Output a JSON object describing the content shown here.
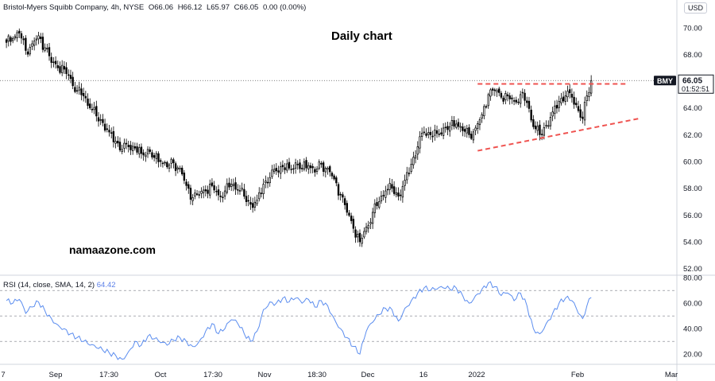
{
  "header": {
    "name": "Bristol-Myers Squibb Company, 4h, NYSE",
    "open": "O66.06",
    "high": "H66.12",
    "low": "L65.97",
    "close": "C66.05",
    "change": "0.00 (0.00%)"
  },
  "currency": "USD",
  "annotation_title": "Daily chart",
  "watermark": "namaazone.com",
  "price_tag": {
    "symbol": "BMY",
    "price": "66.05",
    "countdown": "01:52:51"
  },
  "rsi_header": {
    "label": "RSI (14, close, SMA, 14, 2)",
    "value": "64.42"
  },
  "colors": {
    "up_candle": "#000000",
    "down_candle": "#000000",
    "trendline": "#ef5350",
    "rsi_line": "#5b8def",
    "price_line": "#555555"
  },
  "chart_data": [
    {
      "type": "candlestick",
      "ylim": [
        51.5,
        71.0
      ],
      "y_ticks": [
        "52.00",
        "54.00",
        "56.00",
        "58.00",
        "60.00",
        "62.00",
        "64.00",
        "66.00",
        "68.00",
        "70.00"
      ],
      "x_ticks": [
        "7",
        "Sep",
        "17:30",
        "Oct",
        "17:30",
        "Nov",
        "18:30",
        "Dec",
        "16",
        "2022",
        "Feb",
        "Mar"
      ],
      "close_path": [
        [
          0,
          68.9
        ],
        [
          3,
          69.2
        ],
        [
          6,
          69.6
        ],
        [
          9,
          68.3
        ],
        [
          12,
          68.8
        ],
        [
          15,
          69.4
        ],
        [
          18,
          68.5
        ],
        [
          21,
          67.4
        ],
        [
          24,
          67.0
        ],
        [
          27,
          66.9
        ],
        [
          30,
          66.2
        ],
        [
          33,
          65.3
        ],
        [
          36,
          64.9
        ],
        [
          39,
          64.0
        ],
        [
          42,
          63.4
        ],
        [
          45,
          62.9
        ],
        [
          48,
          62.2
        ],
        [
          51,
          61.5
        ],
        [
          54,
          60.9
        ],
        [
          57,
          61.1
        ],
        [
          60,
          61.0
        ],
        [
          63,
          60.6
        ],
        [
          66,
          60.9
        ],
        [
          69,
          60.3
        ],
        [
          72,
          60.0
        ],
        [
          75,
          59.6
        ],
        [
          78,
          59.9
        ],
        [
          81,
          59.5
        ],
        [
          84,
          58.2
        ],
        [
          87,
          57.3
        ],
        [
          90,
          57.5
        ],
        [
          93,
          57.8
        ],
        [
          96,
          58.2
        ],
        [
          99,
          57.5
        ],
        [
          102,
          57.8
        ],
        [
          105,
          58.3
        ],
        [
          108,
          57.9
        ],
        [
          111,
          57.4
        ],
        [
          114,
          56.8
        ],
        [
          117,
          57.1
        ],
        [
          120,
          58.3
        ],
        [
          123,
          58.8
        ],
        [
          126,
          59.3
        ],
        [
          129,
          59.6
        ],
        [
          132,
          59.5
        ],
        [
          135,
          59.9
        ],
        [
          138,
          59.5
        ],
        [
          141,
          59.7
        ],
        [
          144,
          59.2
        ],
        [
          147,
          59.8
        ],
        [
          150,
          59.5
        ],
        [
          153,
          58.7
        ],
        [
          156,
          57.5
        ],
        [
          159,
          56.2
        ],
        [
          162,
          55.0
        ],
        [
          165,
          54.0
        ],
        [
          168,
          55.1
        ],
        [
          171,
          56.2
        ],
        [
          174,
          57.0
        ],
        [
          177,
          57.8
        ],
        [
          180,
          58.0
        ],
        [
          183,
          57.4
        ],
        [
          186,
          58.6
        ],
        [
          189,
          59.8
        ],
        [
          192,
          61.1
        ],
        [
          195,
          62.2
        ],
        [
          198,
          62.0
        ],
        [
          201,
          62.1
        ],
        [
          204,
          62.5
        ],
        [
          207,
          62.6
        ],
        [
          210,
          62.8
        ],
        [
          213,
          62.3
        ],
        [
          216,
          62.0
        ],
        [
          219,
          62.5
        ],
        [
          222,
          63.5
        ],
        [
          225,
          65.0
        ],
        [
          228,
          65.3
        ],
        [
          231,
          64.8
        ],
        [
          234,
          64.9
        ],
        [
          237,
          64.5
        ],
        [
          240,
          65.0
        ],
        [
          243,
          64.4
        ],
        [
          246,
          62.6
        ],
        [
          249,
          62.0
        ],
        [
          252,
          62.7
        ],
        [
          255,
          63.7
        ],
        [
          258,
          64.5
        ],
        [
          261,
          64.9
        ],
        [
          264,
          64.8
        ],
        [
          267,
          63.8
        ],
        [
          269,
          63.2
        ],
        [
          271,
          64.9
        ],
        [
          273,
          66.05
        ]
      ],
      "last_price": 66.05,
      "trendlines": [
        {
          "style": "dashed",
          "from": [
            220,
            65.8
          ],
          "to": [
            290,
            65.8
          ]
        },
        {
          "style": "dashed",
          "from": [
            220,
            60.8
          ],
          "to": [
            295,
            63.2
          ]
        }
      ]
    },
    {
      "type": "line",
      "name": "RSI (14, close, SMA, 14, 2)",
      "ylim": [
        12,
        82
      ],
      "y_ticks": [
        "20.00",
        "40.00",
        "60.00",
        "80.00"
      ],
      "levels": [
        30,
        50,
        70
      ],
      "values": [
        [
          0,
          62
        ],
        [
          3,
          60
        ],
        [
          6,
          63
        ],
        [
          9,
          52
        ],
        [
          12,
          57
        ],
        [
          15,
          61
        ],
        [
          18,
          54
        ],
        [
          21,
          48
        ],
        [
          24,
          43
        ],
        [
          27,
          40
        ],
        [
          30,
          36
        ],
        [
          33,
          33
        ],
        [
          36,
          30
        ],
        [
          39,
          27
        ],
        [
          42,
          25
        ],
        [
          45,
          23
        ],
        [
          48,
          21
        ],
        [
          51,
          19
        ],
        [
          54,
          16
        ],
        [
          57,
          22
        ],
        [
          60,
          30
        ],
        [
          63,
          27
        ],
        [
          66,
          34
        ],
        [
          69,
          32
        ],
        [
          72,
          29
        ],
        [
          75,
          27
        ],
        [
          78,
          31
        ],
        [
          81,
          33
        ],
        [
          84,
          30
        ],
        [
          87,
          26
        ],
        [
          90,
          30
        ],
        [
          93,
          38
        ],
        [
          96,
          44
        ],
        [
          99,
          36
        ],
        [
          102,
          40
        ],
        [
          105,
          47
        ],
        [
          108,
          44
        ],
        [
          111,
          36
        ],
        [
          114,
          30
        ],
        [
          117,
          38
        ],
        [
          120,
          55
        ],
        [
          123,
          61
        ],
        [
          126,
          60
        ],
        [
          129,
          64
        ],
        [
          132,
          61
        ],
        [
          135,
          64
        ],
        [
          138,
          60
        ],
        [
          141,
          63
        ],
        [
          144,
          57
        ],
        [
          147,
          62
        ],
        [
          150,
          58
        ],
        [
          153,
          48
        ],
        [
          156,
          40
        ],
        [
          159,
          33
        ],
        [
          162,
          26
        ],
        [
          165,
          20
        ],
        [
          168,
          38
        ],
        [
          171,
          45
        ],
        [
          174,
          51
        ],
        [
          177,
          56
        ],
        [
          180,
          55
        ],
        [
          183,
          46
        ],
        [
          186,
          56
        ],
        [
          189,
          62
        ],
        [
          192,
          68
        ],
        [
          195,
          72
        ],
        [
          198,
          70
        ],
        [
          201,
          71
        ],
        [
          204,
          72
        ],
        [
          207,
          71
        ],
        [
          210,
          72
        ],
        [
          213,
          66
        ],
        [
          216,
          60
        ],
        [
          219,
          66
        ],
        [
          222,
          71
        ],
        [
          225,
          76
        ],
        [
          228,
          73
        ],
        [
          231,
          66
        ],
        [
          234,
          68
        ],
        [
          237,
          62
        ],
        [
          240,
          68
        ],
        [
          243,
          58
        ],
        [
          246,
          40
        ],
        [
          249,
          36
        ],
        [
          252,
          44
        ],
        [
          255,
          52
        ],
        [
          258,
          60
        ],
        [
          261,
          64
        ],
        [
          264,
          62
        ],
        [
          267,
          52
        ],
        [
          269,
          48
        ],
        [
          271,
          58
        ],
        [
          273,
          64.42
        ]
      ]
    }
  ]
}
